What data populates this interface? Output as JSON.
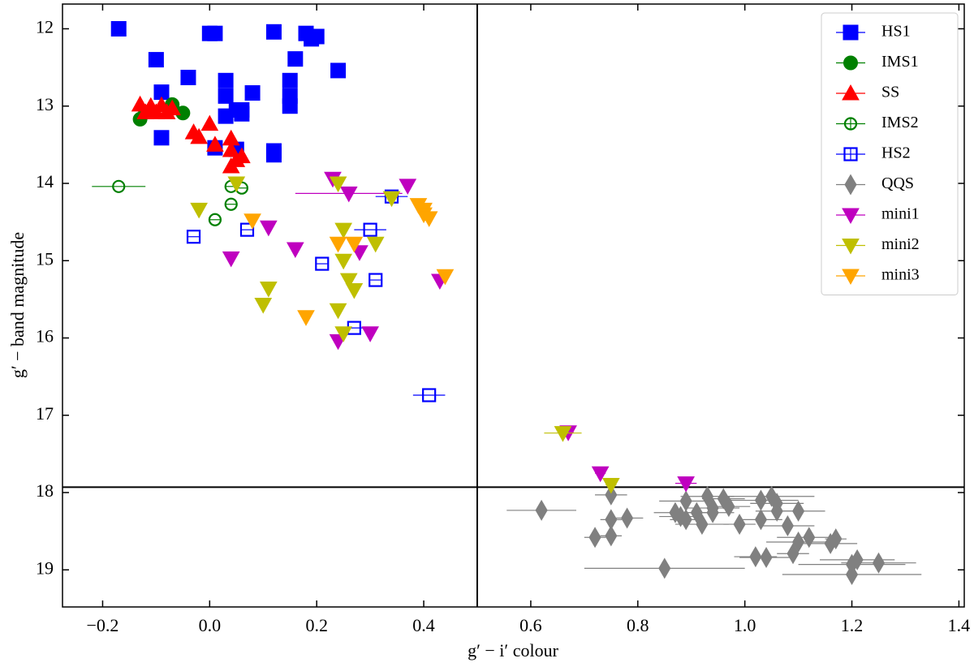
{
  "chart_data": {
    "type": "scatter",
    "xlabel": "g′ − i′ colour",
    "ylabel": "g′ − band magnitude",
    "xlim": [
      -0.275,
      1.41
    ],
    "ylim": [
      19.48,
      11.68
    ],
    "inverted_y": true,
    "xticks": [
      {
        "value": -0.2,
        "label": "−0.2"
      },
      {
        "value": 0,
        "label": "0.0"
      },
      0.2,
      0.4,
      0.6,
      0.8,
      {
        "value": 1,
        "label": "1.0"
      },
      1.2,
      1.4
    ],
    "yticks": [
      12,
      13,
      14,
      15,
      16,
      17,
      18,
      19
    ],
    "vline": 0.5,
    "hline": 17.93,
    "grid": false,
    "legend": "upper right",
    "series": [
      {
        "name": "HS1",
        "color": "#0000ff",
        "marker": "s",
        "filled": true,
        "x": [
          -0.17,
          -0.1,
          -0.09,
          -0.09,
          -0.04,
          0.0,
          0.01,
          0.03,
          0.03,
          0.03,
          0.05,
          0.06,
          0.06,
          0.08,
          0.12,
          0.16,
          0.18,
          0.19,
          0.2,
          0.15,
          0.15,
          0.15,
          0.24,
          0.12,
          0.12,
          0.01,
          0.05
        ],
        "values": [
          12.0,
          12.4,
          12.82,
          13.41,
          12.63,
          12.06,
          12.06,
          12.67,
          12.87,
          13.13,
          13.05,
          13.05,
          13.1,
          12.83,
          12.04,
          12.39,
          12.06,
          12.13,
          12.1,
          12.67,
          12.87,
          13.0,
          12.54,
          13.58,
          13.63,
          13.54,
          13.56
        ]
      },
      {
        "name": "IMS1",
        "color": "#008000",
        "marker": "o",
        "filled": true,
        "x": [
          -0.13,
          -0.12,
          -0.07,
          -0.05
        ],
        "values": [
          13.17,
          13.08,
          12.98,
          13.09
        ]
      },
      {
        "name": "SS",
        "color": "#ff0000",
        "marker": "^",
        "filled": true,
        "x": [
          -0.13,
          -0.12,
          -0.11,
          -0.1,
          -0.09,
          -0.08,
          -0.07,
          -0.03,
          -0.02,
          0.0,
          0.01,
          0.04,
          0.04,
          0.04,
          0.05,
          0.06
        ],
        "values": [
          12.98,
          13.08,
          13.0,
          13.08,
          12.99,
          13.08,
          13.03,
          13.34,
          13.4,
          13.23,
          13.5,
          13.42,
          13.57,
          13.78,
          13.7,
          13.65
        ]
      },
      {
        "name": "IMS2",
        "color": "#008000",
        "marker": "o",
        "filled": false,
        "x": [
          -0.17,
          0.04,
          0.06,
          0.04,
          0.01
        ],
        "values": [
          14.04,
          14.04,
          14.06,
          14.27,
          14.47
        ],
        "xerr": [
          0.05,
          0.01,
          0.01,
          0.01,
          0.01
        ]
      },
      {
        "name": "HS2",
        "color": "#0000ff",
        "marker": "s",
        "filled": false,
        "x": [
          -0.03,
          0.07,
          0.34,
          0.3,
          0.21,
          0.31,
          0.27,
          0.41
        ],
        "values": [
          14.69,
          14.6,
          14.17,
          14.6,
          15.04,
          15.25,
          15.87,
          16.74
        ],
        "xerr": [
          0.01,
          0.01,
          0.03,
          0.03,
          0.01,
          0.01,
          0.02,
          0.03
        ]
      },
      {
        "name": "QQS",
        "color": "#808080",
        "marker": "D",
        "filled": true,
        "x": [
          0.62,
          0.72,
          0.75,
          0.75,
          0.75,
          0.78,
          0.85,
          0.87,
          0.88,
          0.89,
          0.89,
          0.91,
          0.92,
          0.93,
          0.94,
          0.94,
          0.96,
          0.97,
          0.99,
          1.02,
          1.03,
          1.03,
          1.04,
          1.05,
          1.06,
          1.06,
          1.08,
          1.09,
          1.1,
          1.1,
          1.12,
          1.16,
          1.17,
          1.2,
          1.2,
          1.21,
          1.25
        ],
        "values": [
          18.23,
          18.58,
          18.03,
          18.35,
          18.56,
          18.33,
          18.98,
          18.26,
          18.31,
          18.11,
          18.35,
          18.26,
          18.41,
          18.05,
          18.26,
          18.2,
          18.08,
          18.18,
          18.41,
          18.83,
          18.1,
          18.35,
          18.84,
          18.05,
          18.14,
          18.24,
          18.43,
          18.79,
          18.24,
          18.64,
          18.58,
          18.66,
          18.6,
          19.06,
          18.93,
          18.87,
          18.91
        ],
        "xerr": [
          0.065,
          0.02,
          0.03,
          0.02,
          0.02,
          0.03,
          0.15,
          0.04,
          0.04,
          0.05,
          0.03,
          0.04,
          0.05,
          0.05,
          0.04,
          0.05,
          0.04,
          0.04,
          0.03,
          0.04,
          0.07,
          0.04,
          0.05,
          0.08,
          0.05,
          0.04,
          0.05,
          0.03,
          0.05,
          0.06,
          0.06,
          0.05,
          0.02,
          0.13,
          0.1,
          0.07,
          0.07
        ]
      },
      {
        "name": "mini1",
        "color": "#bf00bf",
        "marker": "v",
        "filled": true,
        "x": [
          0.23,
          0.26,
          0.37,
          0.11,
          0.16,
          0.04,
          0.28,
          0.24,
          0.3,
          0.43,
          0.67,
          0.73,
          0.89
        ],
        "values": [
          13.94,
          14.13,
          14.03,
          14.57,
          14.85,
          14.97,
          14.89,
          16.04,
          15.94,
          15.26,
          17.22,
          17.75,
          17.88
        ],
        "xerr": [
          0.0,
          0.1,
          0.0,
          0.0,
          0.0,
          0.0,
          0.0,
          0.0,
          0.0,
          0.0,
          0.01,
          0.01,
          0.02
        ]
      },
      {
        "name": "mini2",
        "color": "#bfbf00",
        "marker": "v",
        "filled": true,
        "x": [
          0.24,
          0.05,
          -0.02,
          0.34,
          0.25,
          0.31,
          0.25,
          0.26,
          0.27,
          0.11,
          0.1,
          0.24,
          0.25,
          0.66,
          0.75
        ],
        "values": [
          14.0,
          14.0,
          14.34,
          14.19,
          14.6,
          14.78,
          15.0,
          15.25,
          15.38,
          15.36,
          15.57,
          15.64,
          15.94,
          17.23,
          17.9
        ],
        "xerr": [
          0.0,
          0.0,
          0.0,
          0.0,
          0.0,
          0.0,
          0.0,
          0.0,
          0.0,
          0.0,
          0.0,
          0.0,
          0.0,
          0.035,
          0.01
        ]
      },
      {
        "name": "mini3",
        "color": "#ffa500",
        "marker": "v",
        "filled": true,
        "x": [
          0.08,
          0.39,
          0.4,
          0.4,
          0.41,
          0.24,
          0.27,
          0.18,
          0.44
        ],
        "values": [
          14.48,
          14.28,
          14.34,
          14.4,
          14.45,
          14.78,
          14.78,
          15.73,
          15.2
        ]
      }
    ]
  }
}
